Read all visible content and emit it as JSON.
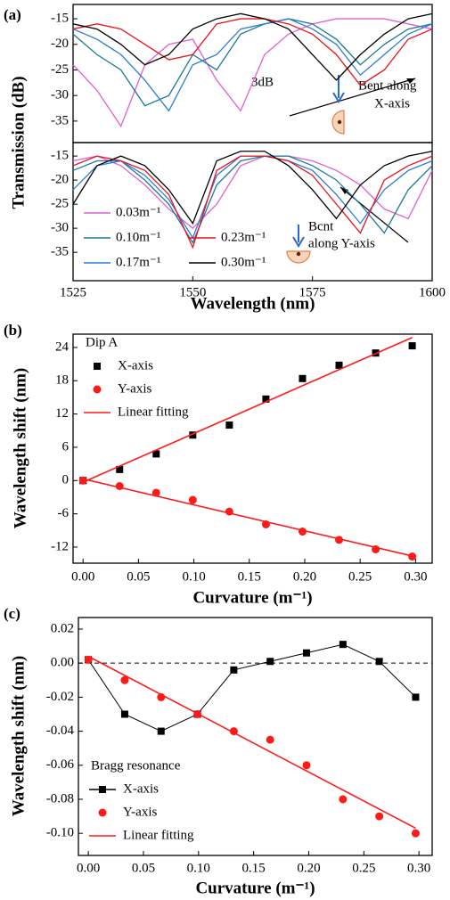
{
  "chart_data": [
    {
      "type": "line",
      "panel_label": "(a)",
      "ylabel": "Transmission (dB)",
      "x": [
        1525,
        1530,
        1535,
        1540,
        1545,
        1550,
        1555,
        1560,
        1565,
        1570,
        1575,
        1580,
        1585,
        1590,
        1595,
        1600
      ],
      "xlim": [
        1525,
        1600
      ],
      "ylim": [
        -39.2,
        -12.2
      ],
      "yticks": [
        -15,
        -20,
        -25,
        -30,
        -35
      ],
      "annotations": [
        "3dB",
        "Bent along",
        "X-axis"
      ],
      "series": [
        {
          "color": "#e060d0",
          "values": [
            -24,
            -29,
            -36,
            -24,
            -20,
            -19,
            -27,
            -33,
            -22,
            -18,
            -16,
            -15,
            -15,
            -15,
            -16,
            -17
          ]
        },
        {
          "color": "#1a7a9a",
          "values": [
            -18,
            -22,
            -25,
            -32,
            -30,
            -22,
            -25,
            -18,
            -16,
            -15,
            -16,
            -19,
            -24,
            -20,
            -17,
            -16
          ]
        },
        {
          "color": "#2a7ad8",
          "values": [
            -17,
            -19,
            -22,
            -27,
            -33,
            -24,
            -22,
            -17,
            -16,
            -15,
            -17,
            -20,
            -26,
            -22,
            -18,
            -16
          ]
        },
        {
          "color": "#e8141c",
          "values": [
            -17,
            -16,
            -17,
            -20,
            -23,
            -22,
            -16,
            -15,
            -15,
            -16,
            -18,
            -22,
            -28,
            -25,
            -19,
            -17
          ]
        },
        {
          "color": "#000000",
          "values": [
            -16,
            -17,
            -20,
            -24,
            -22,
            -17,
            -15,
            -14,
            -15,
            -17,
            -22,
            -27,
            -22,
            -18,
            -15,
            -14
          ]
        }
      ]
    },
    {
      "type": "line",
      "xlabel": "Wavelength (nm)",
      "x": [
        1525,
        1530,
        1535,
        1540,
        1545,
        1550,
        1555,
        1560,
        1565,
        1570,
        1575,
        1580,
        1585,
        1590,
        1595,
        1600
      ],
      "xlim": [
        1525,
        1600
      ],
      "xticks": [
        1525,
        1550,
        1575,
        1600
      ],
      "ylim": [
        -40.9,
        -12.2
      ],
      "yticks": [
        -15,
        -20,
        -25,
        -30,
        -35
      ],
      "annotations": [
        "Bcnt",
        "along Y-axis"
      ],
      "legend": "lower left",
      "legend_columns": 2,
      "series": [
        {
          "name": "0.03m⁻¹",
          "color": "#e060d0",
          "values": [
            -16,
            -15,
            -17,
            -21,
            -26,
            -30,
            -25,
            -17,
            -15,
            -15,
            -16,
            -18,
            -21,
            -26,
            -28,
            -18
          ]
        },
        {
          "name": "0.10m⁻¹",
          "color": "#1a7a9a",
          "values": [
            -18,
            -16,
            -16,
            -20,
            -25,
            -33,
            -21,
            -16,
            -15,
            -15,
            -17,
            -20,
            -25,
            -31,
            -22,
            -17
          ]
        },
        {
          "name": "0.17m⁻¹",
          "color": "#2a7ad8",
          "values": [
            -22,
            -17,
            -16,
            -19,
            -24,
            -32,
            -19,
            -15,
            -15,
            -16,
            -18,
            -23,
            -29,
            -22,
            -18,
            -16
          ]
        },
        {
          "name": "0.23m⁻¹",
          "color": "#e8141c",
          "values": [
            -17,
            -15,
            -16,
            -18,
            -23,
            -34,
            -18,
            -15,
            -15,
            -16,
            -19,
            -25,
            -31,
            -20,
            -17,
            -15
          ]
        },
        {
          "name": "0.30m⁻¹",
          "color": "#000000",
          "values": [
            -25,
            -17,
            -15,
            -17,
            -22,
            -29,
            -16,
            -14,
            -14,
            -17,
            -22,
            -28,
            -21,
            -17,
            -15,
            -14
          ]
        }
      ]
    },
    {
      "type": "scatter",
      "panel_label": "(b)",
      "xlabel": "Curvature (m⁻¹)",
      "ylabel": "Wavelength shift (nm)",
      "xlim": [
        -0.009,
        0.315
      ],
      "ylim": [
        -14.9,
        26.4
      ],
      "xticks": [
        {
          "value": 0,
          "label": "0.00"
        },
        0.05,
        {
          "value": 0.1,
          "label": "0.10"
        },
        0.15,
        {
          "value": 0.2,
          "label": "0.20"
        },
        0.25,
        {
          "value": 0.3,
          "label": "0.30"
        }
      ],
      "yticks": [
        24,
        18,
        12,
        6,
        0,
        -6,
        -12
      ],
      "legend": "upper left",
      "legend_title": "Dip A",
      "series": [
        {
          "name": "X-axis",
          "color": "#000000",
          "marker": "square",
          "line": false,
          "x": [
            0,
            0.033,
            0.066,
            0.099,
            0.132,
            0.165,
            0.198,
            0.231,
            0.264,
            0.297
          ],
          "values": [
            0,
            2,
            4.8,
            8.2,
            10,
            14.7,
            18.4,
            20.8,
            23,
            24.3
          ]
        },
        {
          "name": "Y-axis",
          "color": "#ff1a1a",
          "marker": "circle",
          "line": false,
          "x": [
            0,
            0.033,
            0.066,
            0.099,
            0.132,
            0.165,
            0.198,
            0.231,
            0.264,
            0.297
          ],
          "values": [
            0,
            -1,
            -2.2,
            -3.5,
            -5.6,
            -7.9,
            -9.2,
            -10.7,
            -12.4,
            -13.7
          ]
        },
        {
          "name": "Linear fitting",
          "color": "#ff1a1a",
          "line": true,
          "x": [
            0,
            0.297
          ],
          "values": [
            -0.3,
            25.8
          ]
        },
        {
          "color": "#ff1a1a",
          "line": true,
          "x": [
            0,
            0.297
          ],
          "values": [
            0.3,
            -13.6
          ]
        }
      ]
    },
    {
      "type": "scatter",
      "panel_label": "(c)",
      "xlabel": "Curvature (m⁻¹)",
      "ylabel": "Wavelength shift (nm)",
      "xlim": [
        -0.009,
        0.312
      ],
      "ylim": [
        -0.113,
        0.0268
      ],
      "xticks": [
        {
          "value": 0,
          "label": "0.00"
        },
        0.05,
        {
          "value": 0.1,
          "label": "0.10"
        },
        0.15,
        {
          "value": 0.2,
          "label": "0.20"
        },
        0.25,
        {
          "value": 0.3,
          "label": "0.30"
        }
      ],
      "yticks": [
        0.02,
        {
          "value": 0,
          "label": "0.00"
        },
        -0.02,
        -0.04,
        -0.06,
        -0.08,
        {
          "value": -0.1,
          "label": "-0.10"
        }
      ],
      "hline": 0,
      "legend": "lower left",
      "legend_title": "Bragg resonance",
      "series": [
        {
          "name": "X-axis",
          "color": "#000000",
          "marker": "square",
          "line": true,
          "x": [
            0,
            0.033,
            0.066,
            0.099,
            0.132,
            0.165,
            0.198,
            0.231,
            0.264,
            0.297
          ],
          "values": [
            0.002,
            -0.03,
            -0.04,
            -0.03,
            -0.004,
            0.001,
            0.006,
            0.011,
            0.001,
            -0.02
          ]
        },
        {
          "name": "Y-axis",
          "color": "#ff1a1a",
          "marker": "circle",
          "line": false,
          "x": [
            0,
            0.033,
            0.066,
            0.099,
            0.132,
            0.165,
            0.198,
            0.231,
            0.264,
            0.297
          ],
          "values": [
            0.002,
            -0.01,
            -0.02,
            -0.03,
            -0.04,
            -0.045,
            -0.06,
            -0.08,
            -0.09,
            -0.1
          ]
        },
        {
          "name": "Linear fitting",
          "color": "#ff1a1a",
          "line": true,
          "x": [
            0,
            0.297
          ],
          "values": [
            0.004,
            -0.097
          ]
        }
      ]
    }
  ]
}
